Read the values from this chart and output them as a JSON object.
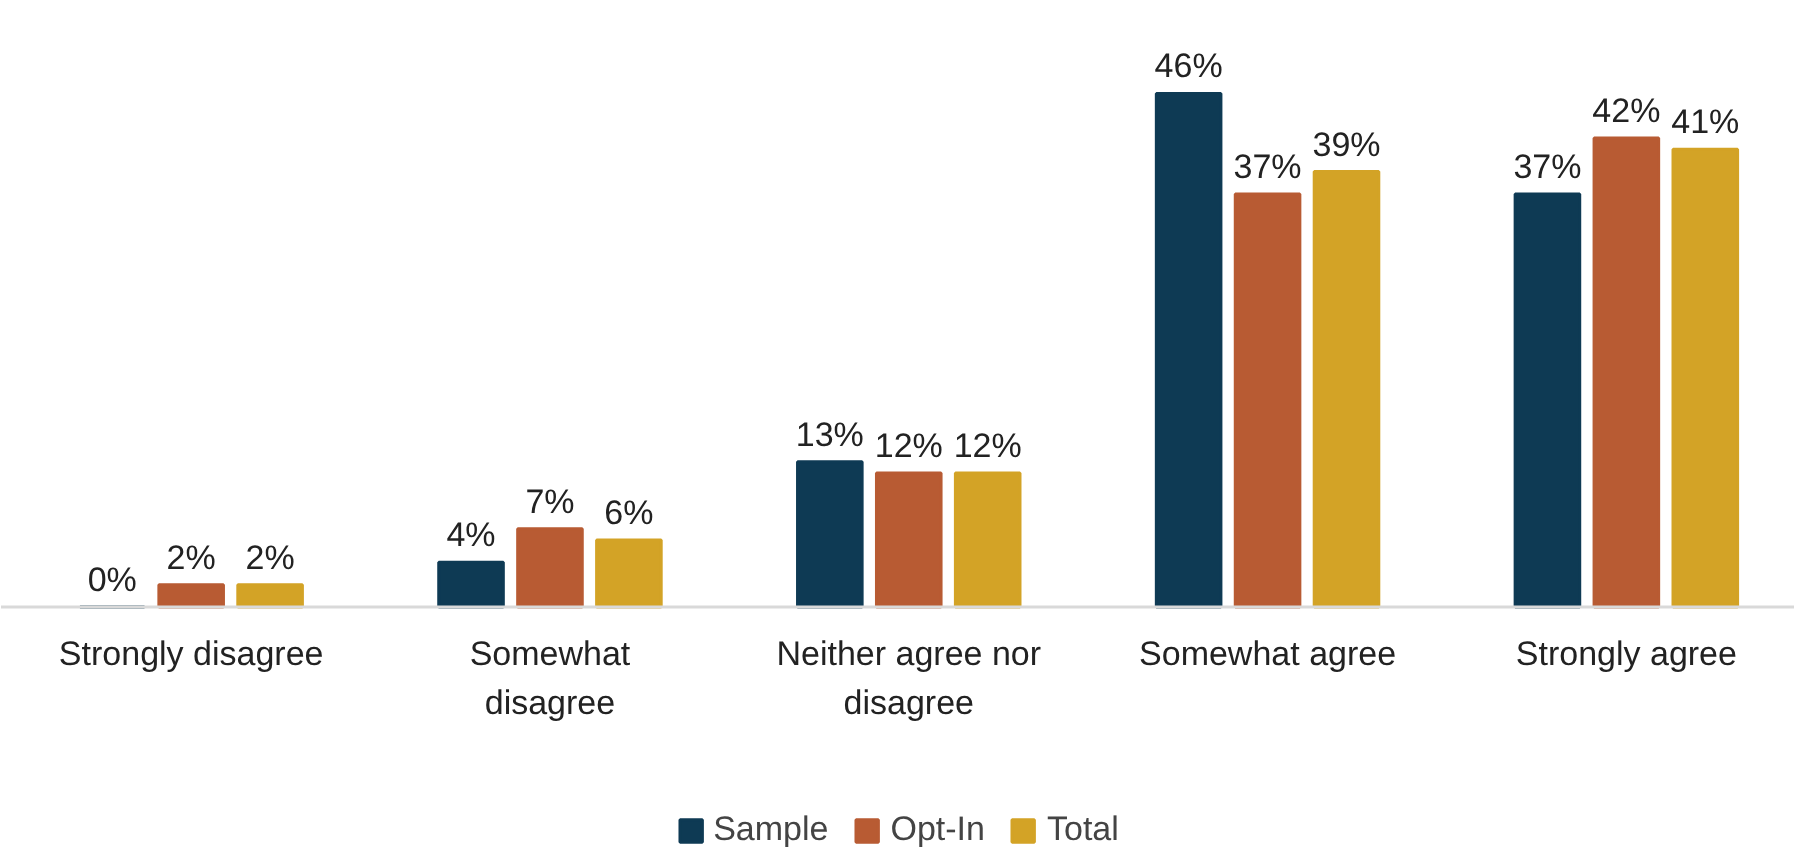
{
  "chart_data": {
    "type": "bar",
    "categories": [
      "Strongly disagree",
      "Somewhat\ndisagree",
      "Neither agree nor\ndisagree",
      "Somewhat agree",
      "Strongly agree"
    ],
    "series": [
      {
        "name": "Sample",
        "color": "#0e3a54",
        "values": [
          0,
          4,
          13,
          46,
          37
        ],
        "value_labels": [
          "0%",
          "4%",
          "13%",
          "46%",
          "37%"
        ]
      },
      {
        "name": "Opt-In",
        "color": "#b85b33",
        "values": [
          2,
          7,
          12,
          37,
          42
        ],
        "value_labels": [
          "2%",
          "7%",
          "12%",
          "37%",
          "42%"
        ]
      },
      {
        "name": "Total",
        "color": "#d3a326",
        "values": [
          2,
          6,
          12,
          39,
          41
        ],
        "value_labels": [
          "2%",
          "6%",
          "12%",
          "39%",
          "41%"
        ]
      }
    ],
    "legend": "bottom"
  }
}
